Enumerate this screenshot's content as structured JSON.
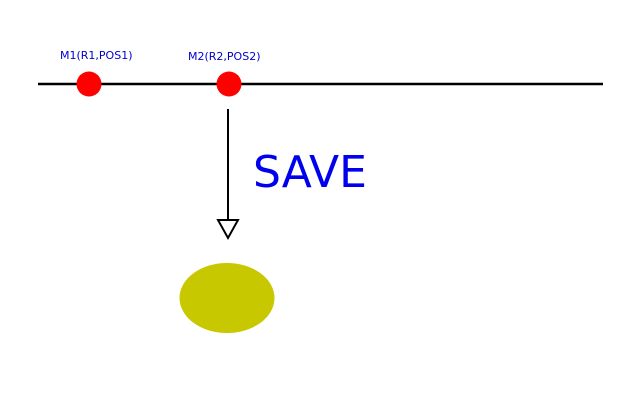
{
  "colors": {
    "line": "#000000",
    "marker": "#ff0000",
    "label_text": "#0000cc",
    "action_text": "#0000ee",
    "result": "#c8c800",
    "background": "#ffffff"
  },
  "markers": [
    {
      "id": "m1",
      "label": "M1(R1,POS1)"
    },
    {
      "id": "m2",
      "label": "M2(R2,POS2)"
    }
  ],
  "action": {
    "label": "SAVE"
  },
  "icons": {
    "arrow": "arrow-down-icon",
    "result_shape": "ellipse-icon"
  }
}
